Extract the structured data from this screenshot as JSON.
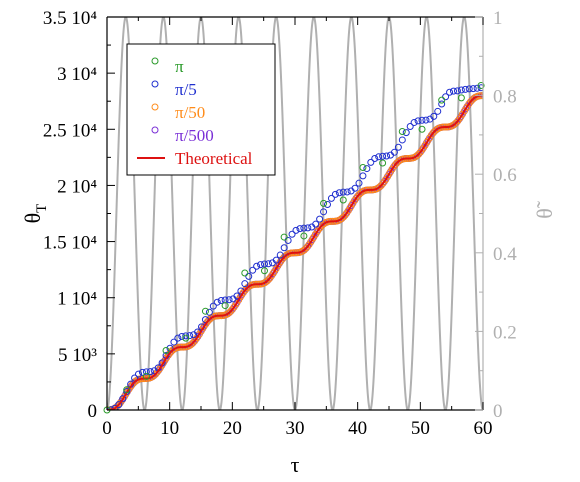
{
  "chart_data": {
    "type": "scatter",
    "xlabel": "τ",
    "ylabel_left": "θ",
    "ylabel_left_subscript": "T",
    "ylabel_right": "θ̃",
    "xlim": [
      0,
      60
    ],
    "ylim_left": [
      0,
      35000
    ],
    "ylim_right": [
      0,
      1
    ],
    "x_ticks": [
      0,
      10,
      20,
      30,
      40,
      50,
      60
    ],
    "x_tick_labels": [
      "0",
      "10",
      "20",
      "30",
      "40",
      "50",
      "60"
    ],
    "y_left_ticks": [
      0,
      5000,
      10000,
      15000,
      20000,
      25000,
      30000,
      35000
    ],
    "y_left_tick_labels": [
      "0",
      "5 10³",
      "1 10⁴",
      "1.5 10⁴",
      "2 10⁴",
      "2.5 10⁴",
      "3 10⁴",
      "3.5 10⁴"
    ],
    "y_right_ticks": [
      0,
      0.2,
      0.4,
      0.6,
      0.8,
      1
    ],
    "y_right_tick_labels": [
      "0",
      "0.2",
      "0.4",
      "0.6",
      "0.8",
      "1"
    ],
    "grid": false,
    "legend_position": "top-left",
    "colors": {
      "pi": "#2a9a2a",
      "pi5": "#1f2fcf",
      "pi50": "#ff8c1a",
      "pi500": "#7a2fd6",
      "theoretical": "#dd1111",
      "oscillation": "#b0b0b0"
    },
    "series": [
      {
        "name": "π",
        "marker": "circle",
        "x": [
          0,
          3.14,
          6.28,
          9.42,
          12.57,
          15.71,
          18.85,
          21.99,
          25.13,
          28.27,
          31.42,
          34.56,
          37.7,
          40.84,
          43.98,
          47.12,
          50.27,
          53.41,
          56.55,
          59.69
        ],
        "y": [
          0,
          1800,
          3000,
          5300,
          6400,
          8800,
          9300,
          12200,
          12400,
          15400,
          15500,
          18400,
          18700,
          21600,
          22000,
          24800,
          25000,
          27600,
          27800,
          28900
        ]
      },
      {
        "name": "π/5",
        "marker": "circle",
        "x": [
          0.628,
          1.257,
          1.885,
          2.513,
          3.142,
          3.77,
          4.398,
          5.027,
          5.655,
          6.283,
          6.912,
          7.54,
          8.168,
          8.796,
          9.425,
          10.053,
          10.681,
          11.31,
          11.938,
          12.566,
          13.195,
          13.823,
          14.451,
          15.08,
          15.708,
          16.336,
          16.965,
          17.593,
          18.221,
          18.85,
          19.478,
          20.106,
          20.735,
          21.363,
          21.991,
          22.619,
          23.248,
          23.876,
          24.504,
          25.133,
          25.761,
          26.389,
          27.018,
          27.646,
          28.274,
          28.903,
          29.531,
          30.159,
          30.788,
          31.416,
          32.044,
          32.673,
          33.301,
          33.929,
          34.558,
          35.186,
          35.814,
          36.442,
          37.071,
          37.699,
          38.327,
          38.956,
          39.584,
          40.212,
          40.841,
          41.469,
          42.097,
          42.726,
          43.354,
          43.982,
          44.611,
          45.239,
          45.867,
          46.496,
          47.124,
          47.752,
          48.381,
          49.009,
          49.637,
          50.265,
          50.894,
          51.522,
          52.15,
          52.779,
          53.407,
          54.035,
          54.664,
          55.292,
          55.92,
          56.549,
          57.177,
          57.805,
          58.434,
          59.062,
          59.69
        ],
        "y": [
          20,
          150,
          480,
          1000,
          1650,
          2300,
          2850,
          3200,
          3350,
          3400,
          3420,
          3500,
          3750,
          4200,
          4850,
          5500,
          6050,
          6400,
          6550,
          6600,
          6620,
          6700,
          6950,
          7400,
          8050,
          8700,
          9250,
          9600,
          9750,
          9800,
          9820,
          9900,
          10150,
          10600,
          11250,
          11900,
          12450,
          12800,
          12950,
          13000,
          13020,
          13100,
          13350,
          13800,
          14450,
          15100,
          15650,
          16000,
          16150,
          16200,
          16220,
          16300,
          16550,
          17000,
          17650,
          18300,
          18850,
          19200,
          19350,
          19400,
          19420,
          19500,
          19750,
          20200,
          20850,
          21500,
          22050,
          22400,
          22550,
          22600,
          22620,
          22700,
          22950,
          23400,
          24050,
          24700,
          25250,
          25600,
          25750,
          25800,
          25820,
          25900,
          26150,
          26600,
          27250,
          27900,
          28300,
          28400,
          28420,
          28500,
          28550,
          28600,
          28620,
          28650,
          28700
        ]
      },
      {
        "name": "π/50",
        "marker": "circle",
        "x": [
          0,
          60
        ],
        "y": [
          0,
          28000
        ],
        "note_style": "dense, overlaps theoretical curve"
      },
      {
        "name": "π/500",
        "marker": "circle",
        "x": [
          0,
          60
        ],
        "y": [
          0,
          28000
        ],
        "note_style": "dense, overlaps theoretical curve"
      },
      {
        "name": "Theoretical",
        "marker": "line",
        "x": [
          0,
          60
        ],
        "y": [
          0,
          28000
        ]
      }
    ],
    "oscillation": {
      "name": "",
      "axis": "right",
      "periods": 10
    }
  }
}
